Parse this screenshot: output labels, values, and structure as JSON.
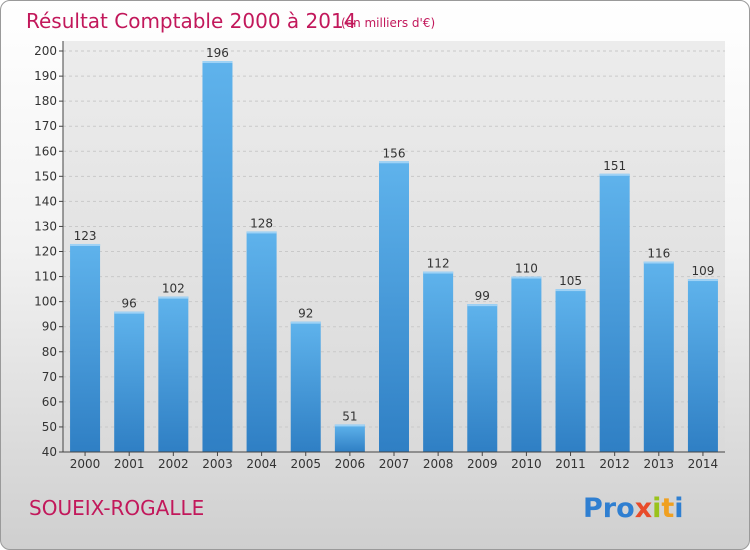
{
  "chart_data": {
    "type": "bar",
    "title": "Résultat Comptable 2000 à 2014",
    "unit_label": "(en milliers d'€)",
    "categories": [
      "2000",
      "2001",
      "2002",
      "2003",
      "2004",
      "2005",
      "2006",
      "2007",
      "2008",
      "2009",
      "2010",
      "2011",
      "2012",
      "2013",
      "2014"
    ],
    "values": [
      123,
      96,
      102,
      196,
      128,
      92,
      51,
      156,
      112,
      99,
      110,
      105,
      151,
      116,
      109
    ],
    "ylim": [
      40,
      200
    ],
    "yticks": [
      "40",
      "50",
      "60",
      "70",
      "80",
      "90",
      "100",
      "110",
      "120",
      "130",
      "140",
      "150",
      "160",
      "170",
      "180",
      "190",
      "200"
    ],
    "grid": true,
    "bar_color": "#4a9fe0"
  },
  "footer": {
    "city": "SOUEIX-ROGALLE",
    "logo_letters": [
      "P",
      "r",
      "o",
      "x",
      "i",
      "t",
      "i"
    ],
    "logo_colors": [
      "#2f7fd1",
      "#2f7fd1",
      "#2f7fd1",
      "#e84b2a",
      "#9ac31c",
      "#f0a020",
      "#2f7fd1"
    ]
  }
}
